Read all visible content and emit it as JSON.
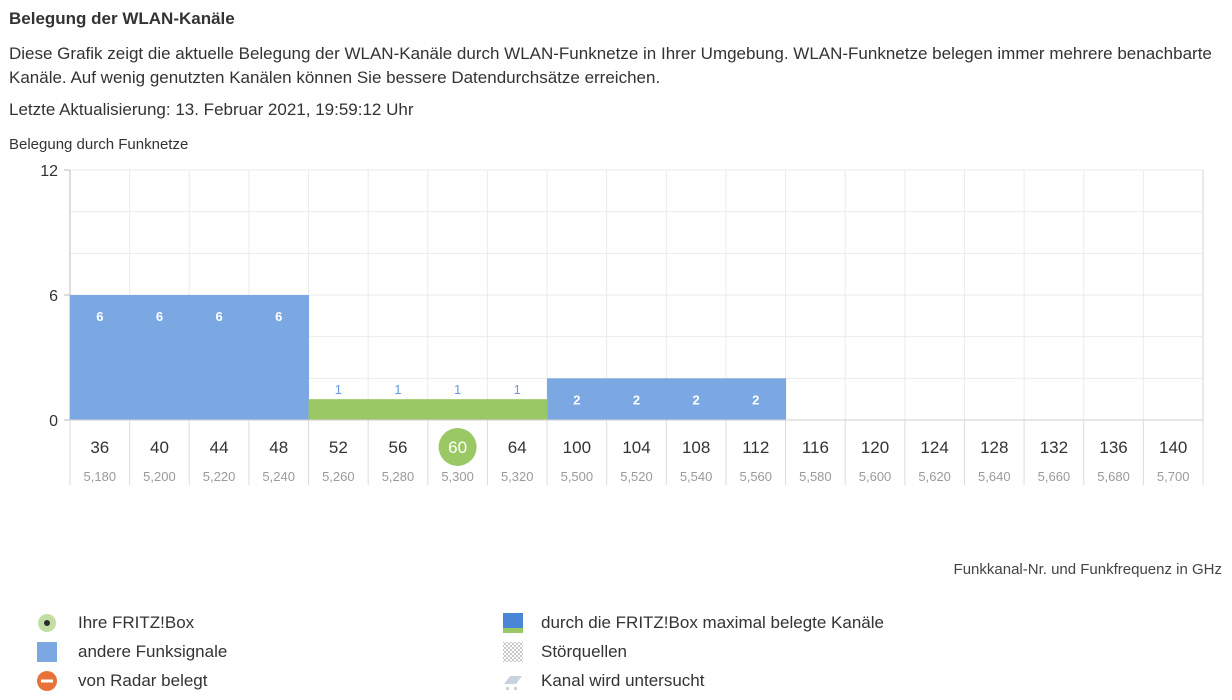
{
  "header": {
    "title": "Belegung der WLAN-Kanäle",
    "description": "Diese Grafik zeigt die aktuelle Belegung der WLAN-Kanäle durch WLAN-Funknetze in Ihrer Umgebung. WLAN-Funknetze belegen immer mehrere benachbarte Kanäle. Auf wenig genutzten Kanälen können Sie bessere Datendurchsätze erreichen.",
    "last_update": "Letzte Aktualisierung: 13. Februar 2021, 19:59:12 Uhr"
  },
  "chart_data": {
    "type": "bar",
    "ylabel": "Belegung durch Funknetze",
    "xlabel": "Funkkanal-Nr. und Funkfrequenz in GHz",
    "ylim": [
      0,
      12
    ],
    "yticks": [
      0,
      6,
      12
    ],
    "categories": [
      "36",
      "40",
      "44",
      "48",
      "52",
      "56",
      "60",
      "64",
      "100",
      "104",
      "108",
      "112",
      "116",
      "120",
      "124",
      "128",
      "132",
      "136",
      "140"
    ],
    "frequencies": [
      "5,180",
      "5,200",
      "5,220",
      "5,240",
      "5,260",
      "5,280",
      "5,300",
      "5,320",
      "5,500",
      "5,520",
      "5,540",
      "5,560",
      "5,580",
      "5,600",
      "5,620",
      "5,640",
      "5,660",
      "5,680",
      "5,700"
    ],
    "fritzbox_channel": "60",
    "series": [
      {
        "name": "andere Funksignale",
        "color": "#7ba7e3",
        "values": [
          6,
          6,
          6,
          6,
          0,
          0,
          0,
          0,
          2,
          2,
          2,
          2,
          0,
          0,
          0,
          0,
          0,
          0,
          0
        ]
      },
      {
        "name": "Ihre FRITZ!Box",
        "color": "#99c865",
        "values": [
          0,
          0,
          0,
          0,
          1,
          1,
          1,
          1,
          0,
          0,
          0,
          0,
          0,
          0,
          0,
          0,
          0,
          0,
          0
        ]
      }
    ]
  },
  "legend": {
    "left": [
      {
        "label": "Ihre FRITZ!Box",
        "icon": "fritzbox-dot-icon"
      },
      {
        "label": "andere Funksignale",
        "icon": "blue-square-icon"
      },
      {
        "label": "von Radar belegt",
        "icon": "radar-minus-icon"
      }
    ],
    "right": [
      {
        "label": "durch die FRITZ!Box maximal belegte Kanäle",
        "icon": "max-channels-icon"
      },
      {
        "label": "Störquellen",
        "icon": "interference-pattern-icon"
      },
      {
        "label": "Kanal wird untersucht",
        "icon": "channel-scan-icon"
      }
    ]
  },
  "colors": {
    "blue": "#7ba7e3",
    "green": "#99c865",
    "dark_blue": "#4a86d8",
    "radar_orange": "#e8733a",
    "grid": "#e8e8e8"
  }
}
